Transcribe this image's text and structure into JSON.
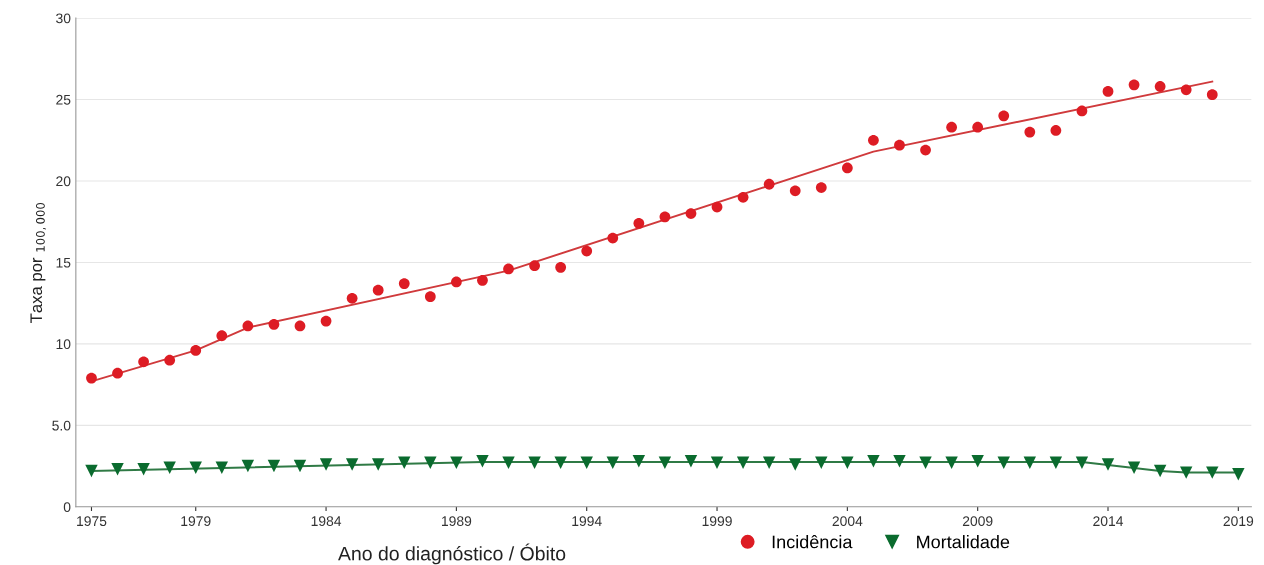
{
  "chart_data": {
    "type": "scatter",
    "xlabel": "Ano do diagnóstico / Óbito",
    "ylabel": "Taxa por $_{100,000}$",
    "xlim": [
      1974.4,
      2019.5
    ],
    "xticks": [
      1975,
      1979,
      1984,
      1989,
      1994,
      1999,
      2004,
      2009,
      2014,
      2019
    ],
    "ylim": [
      0,
      30
    ],
    "yticks": [
      0,
      {
        "value": 5,
        "label": "5.0"
      },
      10,
      15,
      20,
      25,
      30
    ],
    "grid": "y",
    "legend": "bottom",
    "series": [
      {
        "name": "Incidência",
        "marker": "circle",
        "color": "#dd1c24",
        "x": [
          1975,
          1976,
          1977,
          1978,
          1979,
          1980,
          1981,
          1982,
          1983,
          1984,
          1985,
          1986,
          1987,
          1988,
          1989,
          1990,
          1991,
          1992,
          1993,
          1994,
          1995,
          1996,
          1997,
          1998,
          1999,
          2000,
          2001,
          2002,
          2003,
          2004,
          2005,
          2006,
          2007,
          2008,
          2009,
          2010,
          2011,
          2012,
          2013,
          2014,
          2015,
          2016,
          2017,
          2018
        ],
        "values": [
          7.9,
          8.2,
          8.9,
          9.0,
          9.6,
          10.5,
          11.1,
          11.2,
          11.1,
          11.4,
          12.8,
          13.3,
          13.7,
          12.9,
          13.8,
          13.9,
          14.6,
          14.8,
          14.7,
          15.7,
          16.5,
          17.4,
          17.8,
          18.0,
          18.4,
          19.0,
          19.8,
          19.4,
          19.6,
          20.8,
          22.5,
          22.2,
          21.9,
          23.3,
          23.3,
          24.0,
          23.0,
          23.1,
          24.3,
          25.5,
          25.9,
          25.8,
          25.6,
          25.3
        ]
      },
      {
        "type": "line",
        "marker": "none",
        "color": "#d03a3c",
        "x": [
          1975,
          1979,
          1981,
          1991,
          2005,
          2018
        ],
        "values": [
          7.7,
          9.6,
          11.0,
          14.5,
          21.8,
          26.1
        ]
      },
      {
        "name": "Mortalidade",
        "marker": "triangle",
        "color": "#0a6b2e",
        "x": [
          1975,
          1976,
          1977,
          1978,
          1979,
          1980,
          1981,
          1982,
          1983,
          1984,
          1985,
          1986,
          1987,
          1988,
          1989,
          1990,
          1991,
          1992,
          1993,
          1994,
          1995,
          1996,
          1997,
          1998,
          1999,
          2000,
          2001,
          2002,
          2003,
          2004,
          2005,
          2006,
          2007,
          2008,
          2009,
          2010,
          2011,
          2012,
          2013,
          2014,
          2015,
          2016,
          2017,
          2018,
          2019
        ],
        "values": [
          2.2,
          2.3,
          2.3,
          2.4,
          2.4,
          2.4,
          2.5,
          2.5,
          2.5,
          2.6,
          2.6,
          2.6,
          2.7,
          2.7,
          2.7,
          2.8,
          2.7,
          2.7,
          2.7,
          2.7,
          2.7,
          2.8,
          2.7,
          2.8,
          2.7,
          2.7,
          2.7,
          2.6,
          2.7,
          2.7,
          2.8,
          2.8,
          2.7,
          2.7,
          2.8,
          2.7,
          2.7,
          2.7,
          2.7,
          2.6,
          2.4,
          2.2,
          2.1,
          2.1,
          2.0
        ]
      },
      {
        "type": "line",
        "marker": "none",
        "color": "#2f7a45",
        "x": [
          1975,
          1990,
          2013,
          2016,
          2017,
          2019
        ],
        "values": [
          2.2,
          2.75,
          2.75,
          2.2,
          2.1,
          2.1
        ]
      }
    ]
  }
}
